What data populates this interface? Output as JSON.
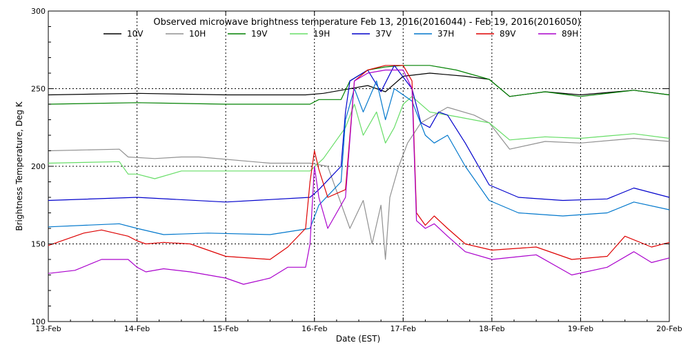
{
  "chart_data": {
    "type": "line",
    "title": "Observed microwave brightness temperature Feb 13, 2016(2016044) - Feb 19, 2016(2016050)",
    "xlabel": "Date (EST)",
    "ylabel": "Brightness Temperature, Deg K",
    "xlim": [
      0,
      7
    ],
    "ylim": [
      100,
      300
    ],
    "x_ticks": [
      0,
      1,
      2,
      3,
      4,
      5,
      6,
      7
    ],
    "x_tick_labels": [
      "13-Feb",
      "14-Feb",
      "15-Feb",
      "16-Feb",
      "17-Feb",
      "18-Feb",
      "19-Feb",
      "20-Feb"
    ],
    "y_ticks": [
      100,
      150,
      200,
      250,
      300
    ],
    "y_tick_labels": [
      "100",
      "150",
      "200",
      "250",
      "300"
    ],
    "grid": "dotted",
    "x_units": "days since 13-Feb",
    "series": [
      {
        "name": "10V",
        "color": "#000000",
        "x": [
          0,
          1,
          2,
          2.9,
          3.1,
          3.3,
          3.6,
          3.8,
          4.0,
          4.3,
          4.7,
          4.97,
          5.2,
          5.6,
          6.0,
          6.6,
          7
        ],
        "y": [
          246,
          247,
          246,
          246,
          247,
          249,
          252,
          248,
          258,
          260,
          258,
          256,
          245,
          248,
          246,
          249,
          246
        ]
      },
      {
        "name": "10H",
        "color": "#909090",
        "x": [
          0,
          0.8,
          0.9,
          1.2,
          1.5,
          1.7,
          2.5,
          2.95,
          3.15,
          3.4,
          3.55,
          3.65,
          3.75,
          3.8,
          3.85,
          3.95,
          4.05,
          4.2,
          4.5,
          4.8,
          4.97,
          5.2,
          5.6,
          6.0,
          6.6,
          7
        ],
        "y": [
          210,
          211,
          206,
          205,
          206,
          206,
          202,
          202,
          200,
          160,
          178,
          150,
          175,
          140,
          180,
          200,
          215,
          228,
          238,
          233,
          228,
          211,
          216,
          215,
          218,
          216
        ]
      },
      {
        "name": "19V",
        "color": "#008000",
        "x": [
          0,
          1,
          2,
          2.95,
          3.05,
          3.3,
          3.4,
          3.6,
          3.8,
          4.0,
          4.3,
          4.6,
          4.97,
          5.2,
          5.6,
          6.0,
          6.6,
          7
        ],
        "y": [
          240,
          241,
          240,
          240,
          243,
          243,
          255,
          262,
          264,
          265,
          265,
          262,
          256,
          245,
          248,
          245,
          249,
          246
        ]
      },
      {
        "name": "19H",
        "color": "#66dd66",
        "x": [
          0,
          0.8,
          0.9,
          1.0,
          1.2,
          1.5,
          2.0,
          2.5,
          2.95,
          3.1,
          3.35,
          3.45,
          3.55,
          3.7,
          3.8,
          3.9,
          4.0,
          4.1,
          4.3,
          4.6,
          4.97,
          5.2,
          5.6,
          6.0,
          6.6,
          7
        ],
        "y": [
          202,
          203,
          195,
          195,
          192,
          197,
          197,
          197,
          197,
          205,
          225,
          240,
          220,
          235,
          215,
          225,
          240,
          245,
          235,
          232,
          228,
          217,
          219,
          218,
          221,
          218
        ]
      },
      {
        "name": "37V",
        "color": "#0000cc",
        "x": [
          0,
          1,
          2,
          2.95,
          3.05,
          3.3,
          3.35,
          3.4,
          3.6,
          3.75,
          3.9,
          4.1,
          4.2,
          4.3,
          4.4,
          4.5,
          4.7,
          4.97,
          5.3,
          5.8,
          6.3,
          6.6,
          7
        ],
        "y": [
          178,
          180,
          177,
          180,
          185,
          200,
          235,
          255,
          262,
          248,
          265,
          250,
          228,
          225,
          235,
          233,
          215,
          188,
          180,
          178,
          179,
          186,
          180
        ]
      },
      {
        "name": "37H",
        "color": "#0077cc",
        "x": [
          0,
          0.8,
          1.0,
          1.3,
          1.8,
          2.5,
          2.95,
          3.05,
          3.3,
          3.35,
          3.45,
          3.55,
          3.7,
          3.8,
          3.9,
          4.1,
          4.25,
          4.35,
          4.5,
          4.7,
          4.97,
          5.3,
          5.8,
          6.3,
          6.6,
          7
        ],
        "y": [
          161,
          163,
          160,
          156,
          157,
          156,
          160,
          175,
          190,
          230,
          250,
          235,
          255,
          230,
          250,
          242,
          220,
          215,
          220,
          200,
          178,
          170,
          168,
          170,
          177,
          172
        ]
      },
      {
        "name": "89V",
        "color": "#dd0000",
        "x": [
          0,
          0.4,
          0.6,
          0.9,
          1.0,
          1.1,
          1.3,
          1.6,
          2.0,
          2.5,
          2.7,
          2.9,
          2.95,
          3.0,
          3.05,
          3.15,
          3.35,
          3.45,
          3.6,
          3.8,
          4.0,
          4.1,
          4.15,
          4.25,
          4.35,
          4.5,
          4.7,
          5.0,
          5.5,
          5.9,
          6.3,
          6.5,
          6.8,
          7
        ],
        "y": [
          149,
          157,
          159,
          155,
          152,
          150,
          151,
          150,
          142,
          140,
          148,
          160,
          190,
          210,
          198,
          180,
          185,
          255,
          262,
          265,
          265,
          255,
          170,
          162,
          168,
          160,
          150,
          146,
          148,
          140,
          142,
          155,
          148,
          151
        ]
      },
      {
        "name": "89H",
        "color": "#aa00cc",
        "x": [
          0,
          0.3,
          0.6,
          0.9,
          1.0,
          1.1,
          1.3,
          1.6,
          2.0,
          2.2,
          2.5,
          2.7,
          2.9,
          2.95,
          3.0,
          3.05,
          3.15,
          3.35,
          3.45,
          3.6,
          3.8,
          4.0,
          4.1,
          4.15,
          4.25,
          4.35,
          4.5,
          4.7,
          5.0,
          5.5,
          5.9,
          6.3,
          6.6,
          6.8,
          7
        ],
        "y": [
          131,
          133,
          140,
          140,
          135,
          132,
          134,
          132,
          128,
          124,
          128,
          135,
          135,
          150,
          200,
          180,
          160,
          180,
          255,
          260,
          262,
          262,
          250,
          165,
          160,
          163,
          155,
          145,
          140,
          143,
          130,
          135,
          145,
          138,
          141
        ]
      }
    ]
  }
}
